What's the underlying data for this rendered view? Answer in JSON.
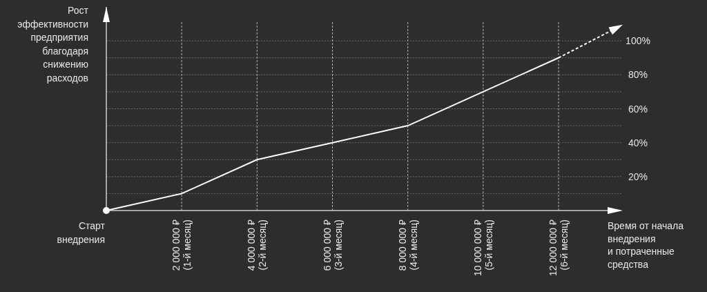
{
  "chart_data": {
    "type": "line",
    "ylabel": "Рост\nэффективности\nпредприятия\nблагодаря\nснижению\nрасходов",
    "xlabel": "Время от начала\nвнедрения\nи потраченные\nсредства",
    "annotations": [
      "Старт\nвнедрения"
    ],
    "categories": [
      null,
      "2 000 000 ₽\n(1-й месяц)",
      "4 000 000 ₽\n(2-й месяц)",
      "6 000 000 ₽\n(3-й месяц)",
      "8 000 000 ₽\n(4-й месяц)",
      "10 000 000 ₽\n(5-й месяц)",
      "12 000 000 ₽\n(6-й месяц)"
    ],
    "ylim": [
      0,
      120
    ],
    "yticks": [
      {
        "value": 10,
        "label": null
      },
      {
        "value": 20,
        "label": "20%"
      },
      {
        "value": 30,
        "label": null
      },
      {
        "value": 40,
        "label": "40%"
      },
      {
        "value": 50,
        "label": null
      },
      {
        "value": 60,
        "label": "60%"
      },
      {
        "value": 70,
        "label": null
      },
      {
        "value": 80,
        "label": "80%"
      },
      {
        "value": 90,
        "label": null
      },
      {
        "value": 100,
        "label": "100%"
      }
    ],
    "grid": true,
    "marker": "none",
    "line_style": "solid",
    "series": [
      {
        "color": "#ffffff",
        "values": [
          0,
          10,
          30,
          40,
          50,
          70,
          90
        ]
      }
    ]
  }
}
